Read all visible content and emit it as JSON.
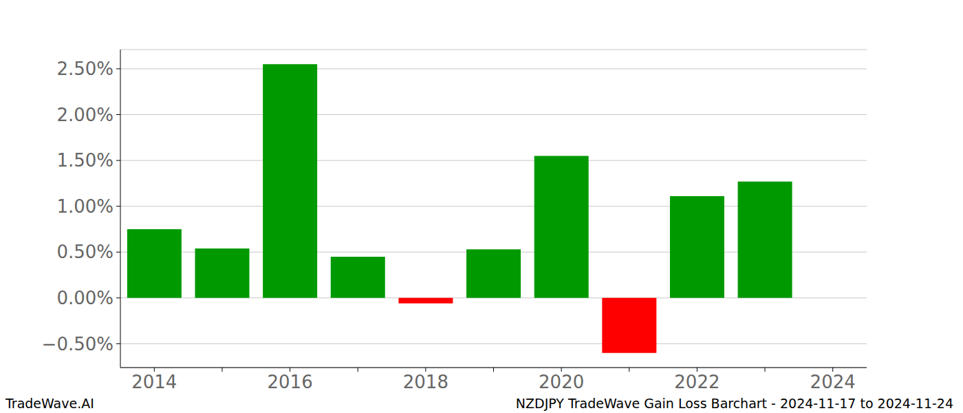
{
  "chart_data": {
    "type": "bar",
    "title": "NZDJPY TradeWave Gain Loss Barchart - 2024-11-17 to 2024-11-24",
    "source": "TradeWave.AI",
    "categories": [
      "2014",
      null,
      "2016",
      null,
      "2018",
      null,
      "2020",
      null,
      "2022",
      null,
      "2024"
    ],
    "values": [
      0.75,
      0.54,
      2.55,
      0.45,
      -0.06,
      0.53,
      1.55,
      -0.6,
      1.11,
      1.27,
      null
    ],
    "colors": [
      "#009900",
      "#009900",
      "#009900",
      "#009900",
      "#ff0000",
      "#009900",
      "#009900",
      "#ff0000",
      "#009900",
      "#009900",
      "#009900"
    ],
    "ylim": [
      -0.76,
      2.71
    ],
    "yticks": [
      {
        "value": -0.5,
        "label": "−0.50%"
      },
      {
        "value": 0,
        "label": "0.00%"
      },
      {
        "value": 0.5,
        "label": "0.50%"
      },
      {
        "value": 1,
        "label": "1.00%"
      },
      {
        "value": 1.5,
        "label": "1.50%"
      },
      {
        "value": 2,
        "label": "2.00%"
      },
      {
        "value": 2.5,
        "label": "2.50%"
      }
    ],
    "grid": true
  }
}
